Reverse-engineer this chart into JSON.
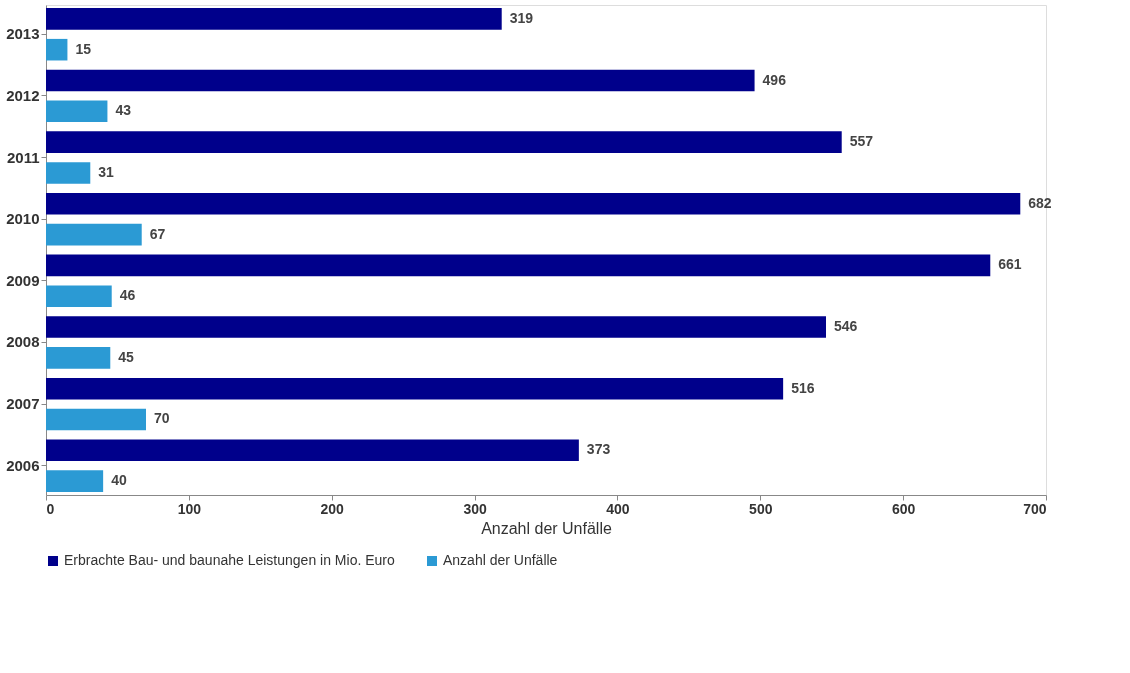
{
  "chart_data": {
    "type": "bar",
    "orientation": "horizontal",
    "categories": [
      "2013",
      "2012",
      "2011",
      "2010",
      "2009",
      "2008",
      "2007",
      "2006"
    ],
    "series": [
      {
        "name": "Erbrachte Bau- und baunahe Leistungen in Mio. Euro",
        "color": "#00008b",
        "values": [
          319,
          496,
          557,
          682,
          661,
          546,
          516,
          373
        ]
      },
      {
        "name": "Anzahl der Unfälle",
        "color": "#2b9ad4",
        "values": [
          15,
          43,
          31,
          67,
          46,
          45,
          70,
          40
        ]
      }
    ],
    "xlabel": "Anzahl der Unfälle",
    "xlim": [
      0,
      700
    ],
    "xticks": [
      0,
      100,
      200,
      300,
      400,
      500,
      600,
      700
    ],
    "data_labels": true,
    "legend": "bottom",
    "grid": false
  }
}
